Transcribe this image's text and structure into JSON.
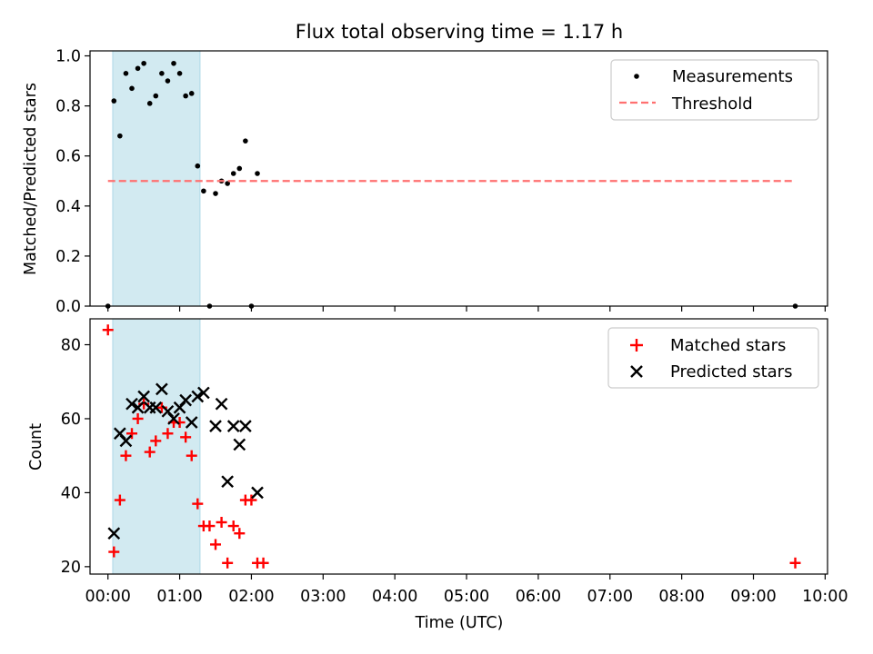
{
  "chart_data": [
    {
      "type": "scatter",
      "title": "Flux total observing time = 1.17 h",
      "ylabel": "Matched/Predicted stars",
      "xlabel": "",
      "xlim": [
        "23:45",
        "10:02"
      ],
      "ylim": [
        0,
        1.02
      ],
      "yticks": [
        "0.0",
        "0.2",
        "0.4",
        "0.6",
        "0.8",
        "1.0"
      ],
      "shaded_region": [
        "00:04",
        "01:17"
      ],
      "shade_color": "#add8e6",
      "legend": "top-right",
      "legend_entries": [
        "Measurements",
        "Threshold"
      ],
      "series": [
        {
          "name": "Measurements",
          "style": "dot",
          "color": "#000000",
          "x": [
            "00:00",
            "00:05",
            "00:10",
            "00:15",
            "00:20",
            "00:25",
            "00:30",
            "00:35",
            "00:40",
            "00:45",
            "00:50",
            "00:55",
            "01:00",
            "01:05",
            "01:10",
            "01:15",
            "01:20",
            "01:25",
            "01:30",
            "01:35",
            "01:40",
            "01:45",
            "01:50",
            "01:55",
            "02:00",
            "02:05",
            "09:35"
          ],
          "y": [
            0.0,
            0.82,
            0.68,
            0.93,
            0.87,
            0.95,
            0.97,
            0.81,
            0.84,
            0.93,
            0.9,
            0.97,
            0.93,
            0.84,
            0.85,
            0.56,
            0.46,
            0.0,
            0.45,
            0.5,
            0.49,
            0.53,
            0.55,
            0.66,
            0.0,
            0.53,
            0.0
          ]
        },
        {
          "name": "Threshold",
          "style": "dashed",
          "color": "#ff7070",
          "x": [
            "00:00",
            "09:35"
          ],
          "y": [
            0.5,
            0.5
          ]
        }
      ]
    },
    {
      "type": "scatter",
      "title": "",
      "ylabel": "Count",
      "xlabel": "Time (UTC)",
      "xlim": [
        "23:45",
        "10:02"
      ],
      "ylim": [
        18,
        87
      ],
      "yticks": [
        "20",
        "40",
        "60",
        "80"
      ],
      "xticks": [
        "00:00",
        "01:00",
        "02:00",
        "03:00",
        "04:00",
        "05:00",
        "06:00",
        "07:00",
        "08:00",
        "09:00",
        "10:00"
      ],
      "shaded_region": [
        "00:04",
        "01:17"
      ],
      "shade_color": "#add8e6",
      "legend": "top-right",
      "legend_entries": [
        "Matched stars",
        "Predicted stars"
      ],
      "series": [
        {
          "name": "Matched stars",
          "marker": "plus",
          "color": "#ff0000",
          "x": [
            "00:00",
            "00:05",
            "00:10",
            "00:15",
            "00:20",
            "00:25",
            "00:30",
            "00:35",
            "00:40",
            "00:45",
            "00:50",
            "00:55",
            "01:00",
            "01:05",
            "01:10",
            "01:15",
            "01:20",
            "01:25",
            "01:30",
            "01:35",
            "01:40",
            "01:45",
            "01:50",
            "01:55",
            "02:00",
            "02:05",
            "02:10",
            "09:35"
          ],
          "y": [
            84,
            24,
            38,
            50,
            56,
            60,
            64,
            51,
            54,
            63,
            56,
            59,
            59,
            55,
            50,
            37,
            31,
            31,
            26,
            32,
            21,
            31,
            29,
            38,
            38,
            21,
            21,
            21
          ]
        },
        {
          "name": "Predicted stars",
          "marker": "x",
          "color": "#000000",
          "x": [
            "00:05",
            "00:10",
            "00:15",
            "00:20",
            "00:25",
            "00:30",
            "00:35",
            "00:40",
            "00:45",
            "00:50",
            "00:55",
            "01:00",
            "01:05",
            "01:10",
            "01:15",
            "01:20",
            "01:30",
            "01:35",
            "01:40",
            "01:45",
            "01:50",
            "01:55",
            "02:05"
          ],
          "y": [
            29,
            56,
            54,
            64,
            63,
            66,
            63,
            63,
            68,
            62,
            60,
            63,
            65,
            59,
            66,
            67,
            58,
            64,
            43,
            58,
            53,
            58,
            40
          ]
        }
      ]
    }
  ]
}
